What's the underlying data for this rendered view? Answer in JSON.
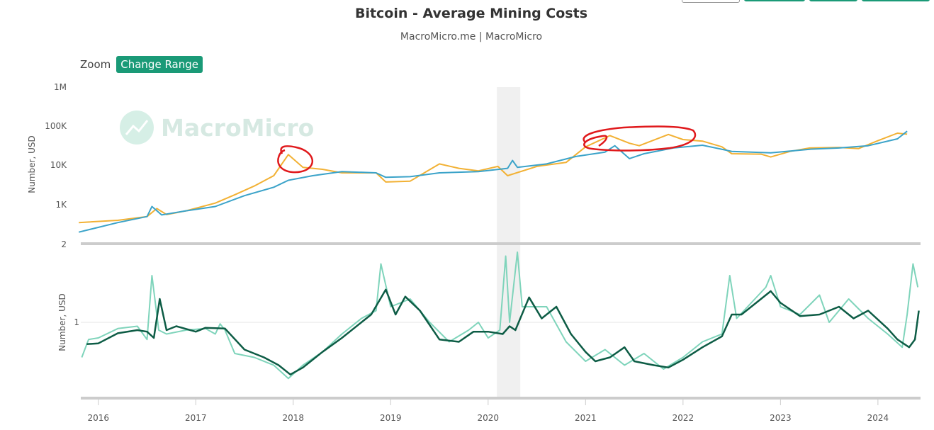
{
  "header": {
    "title": "Bitcoin - Average Mining Costs",
    "subtitle": "MacroMicro.me | MacroMicro"
  },
  "zoom": {
    "label": "Zoom",
    "button_label": "Change Range"
  },
  "watermark": {
    "text": "MacroMicro"
  },
  "colors": {
    "price": "#f2b134",
    "mining_cost": "#3ba3c9",
    "ratio": "#7fd4bb",
    "ratio_ma": "#0d5c45",
    "shade": "#f0f0f0",
    "annotation": "#e0191c"
  },
  "chart_data": [
    {
      "type": "line",
      "panel": "top",
      "y_scale": "log",
      "ylabel": "Number, USD",
      "y_ticks": [
        "1M",
        "100K",
        "10K",
        "1K",
        "2"
      ],
      "ylim": [
        100,
        1000000
      ],
      "series": [
        {
          "points": [
            [
              2015.8,
              350
            ],
            [
              2016.2,
              400
            ],
            [
              2016.5,
              500
            ],
            [
              2016.6,
              800
            ],
            [
              2016.7,
              560
            ],
            [
              2016.9,
              700
            ],
            [
              2017.2,
              1100
            ],
            [
              2017.4,
              1800
            ],
            [
              2017.6,
              3000
            ],
            [
              2017.8,
              5500
            ],
            [
              2017.95,
              19000
            ],
            [
              2018.1,
              9000
            ],
            [
              2018.3,
              8000
            ],
            [
              2018.5,
              6500
            ],
            [
              2018.85,
              6500
            ],
            [
              2018.95,
              3800
            ],
            [
              2019.2,
              4000
            ],
            [
              2019.5,
              11000
            ],
            [
              2019.7,
              8500
            ],
            [
              2019.9,
              7300
            ],
            [
              2020.1,
              9500
            ],
            [
              2020.2,
              5500
            ],
            [
              2020.5,
              9500
            ],
            [
              2020.8,
              12000
            ],
            [
              2021.0,
              30000
            ],
            [
              2021.25,
              58000
            ],
            [
              2021.45,
              37000
            ],
            [
              2021.55,
              32000
            ],
            [
              2021.85,
              62000
            ],
            [
              2022.0,
              46000
            ],
            [
              2022.2,
              42000
            ],
            [
              2022.4,
              30000
            ],
            [
              2022.5,
              20000
            ],
            [
              2022.8,
              19500
            ],
            [
              2022.9,
              16500
            ],
            [
              2023.1,
              23000
            ],
            [
              2023.3,
              28000
            ],
            [
              2023.6,
              29000
            ],
            [
              2023.8,
              27000
            ],
            [
              2024.0,
              43000
            ],
            [
              2024.2,
              67000
            ],
            [
              2024.3,
              63000
            ]
          ]
        },
        {
          "points": [
            [
              2015.8,
              200
            ],
            [
              2016.2,
              350
            ],
            [
              2016.5,
              500
            ],
            [
              2016.55,
              900
            ],
            [
              2016.65,
              550
            ],
            [
              2016.9,
              700
            ],
            [
              2017.2,
              900
            ],
            [
              2017.5,
              1700
            ],
            [
              2017.8,
              2800
            ],
            [
              2017.95,
              4200
            ],
            [
              2018.2,
              5500
            ],
            [
              2018.5,
              7000
            ],
            [
              2018.85,
              6500
            ],
            [
              2018.95,
              5000
            ],
            [
              2019.2,
              5200
            ],
            [
              2019.5,
              6500
            ],
            [
              2019.9,
              7000
            ],
            [
              2020.2,
              8500
            ],
            [
              2020.25,
              13500
            ],
            [
              2020.3,
              9000
            ],
            [
              2020.6,
              11000
            ],
            [
              2020.9,
              17000
            ],
            [
              2021.2,
              22000
            ],
            [
              2021.3,
              32000
            ],
            [
              2021.45,
              15000
            ],
            [
              2021.6,
              20000
            ],
            [
              2021.9,
              28000
            ],
            [
              2022.2,
              33000
            ],
            [
              2022.5,
              23000
            ],
            [
              2022.9,
              21000
            ],
            [
              2023.3,
              26000
            ],
            [
              2023.6,
              28000
            ],
            [
              2023.9,
              32000
            ],
            [
              2024.2,
              48000
            ],
            [
              2024.3,
              75000
            ]
          ]
        }
      ]
    },
    {
      "type": "line",
      "panel": "bottom",
      "ylabel": "Number, USD",
      "y_ticks": [
        "1"
      ],
      "ylim": [
        0.2,
        2.2
      ],
      "shaded_range": [
        2020.09,
        2020.33
      ],
      "x_ticks": [
        "2016",
        "2017",
        "2018",
        "2019",
        "2020",
        "2021",
        "2022",
        "2023",
        "2024"
      ],
      "xlim": [
        2015.82,
        2024.43
      ],
      "series": [
        {
          "points": [
            [
              2015.83,
              0.55
            ],
            [
              2015.9,
              0.78
            ],
            [
              2016.0,
              0.8
            ],
            [
              2016.2,
              0.92
            ],
            [
              2016.4,
              0.95
            ],
            [
              2016.5,
              0.78
            ],
            [
              2016.55,
              1.6
            ],
            [
              2016.62,
              0.9
            ],
            [
              2016.7,
              0.85
            ],
            [
              2016.9,
              0.9
            ],
            [
              2017.1,
              0.92
            ],
            [
              2017.2,
              0.85
            ],
            [
              2017.25,
              0.98
            ],
            [
              2017.3,
              0.9
            ],
            [
              2017.4,
              0.6
            ],
            [
              2017.6,
              0.55
            ],
            [
              2017.8,
              0.45
            ],
            [
              2017.95,
              0.28
            ],
            [
              2018.1,
              0.45
            ],
            [
              2018.3,
              0.62
            ],
            [
              2018.5,
              0.85
            ],
            [
              2018.7,
              1.05
            ],
            [
              2018.85,
              1.15
            ],
            [
              2018.9,
              1.75
            ],
            [
              2019.0,
              1.2
            ],
            [
              2019.2,
              1.3
            ],
            [
              2019.4,
              1.0
            ],
            [
              2019.6,
              0.75
            ],
            [
              2019.8,
              0.9
            ],
            [
              2019.9,
              1.0
            ],
            [
              2020.0,
              0.8
            ],
            [
              2020.12,
              0.9
            ],
            [
              2020.18,
              1.85
            ],
            [
              2020.22,
              1.0
            ],
            [
              2020.3,
              1.9
            ],
            [
              2020.35,
              1.2
            ],
            [
              2020.6,
              1.2
            ],
            [
              2020.8,
              0.75
            ],
            [
              2021.0,
              0.5
            ],
            [
              2021.2,
              0.65
            ],
            [
              2021.4,
              0.45
            ],
            [
              2021.6,
              0.6
            ],
            [
              2021.8,
              0.4
            ],
            [
              2022.0,
              0.55
            ],
            [
              2022.2,
              0.75
            ],
            [
              2022.4,
              0.85
            ],
            [
              2022.48,
              1.6
            ],
            [
              2022.55,
              1.05
            ],
            [
              2022.7,
              1.25
            ],
            [
              2022.85,
              1.45
            ],
            [
              2022.9,
              1.6
            ],
            [
              2023.0,
              1.2
            ],
            [
              2023.2,
              1.1
            ],
            [
              2023.4,
              1.35
            ],
            [
              2023.5,
              1.0
            ],
            [
              2023.7,
              1.3
            ],
            [
              2023.9,
              1.05
            ],
            [
              2024.1,
              0.85
            ],
            [
              2024.25,
              0.68
            ],
            [
              2024.3,
              1.1
            ],
            [
              2024.36,
              1.75
            ],
            [
              2024.41,
              1.45
            ]
          ]
        },
        {
          "points": [
            [
              2015.88,
              0.72
            ],
            [
              2016.0,
              0.73
            ],
            [
              2016.2,
              0.86
            ],
            [
              2016.4,
              0.9
            ],
            [
              2016.5,
              0.88
            ],
            [
              2016.57,
              0.8
            ],
            [
              2016.63,
              1.3
            ],
            [
              2016.7,
              0.9
            ],
            [
              2016.8,
              0.95
            ],
            [
              2017.0,
              0.88
            ],
            [
              2017.1,
              0.93
            ],
            [
              2017.3,
              0.92
            ],
            [
              2017.5,
              0.65
            ],
            [
              2017.7,
              0.55
            ],
            [
              2017.85,
              0.45
            ],
            [
              2017.97,
              0.33
            ],
            [
              2018.1,
              0.42
            ],
            [
              2018.3,
              0.62
            ],
            [
              2018.5,
              0.8
            ],
            [
              2018.7,
              1.0
            ],
            [
              2018.8,
              1.1
            ],
            [
              2018.95,
              1.42
            ],
            [
              2019.05,
              1.1
            ],
            [
              2019.15,
              1.33
            ],
            [
              2019.3,
              1.15
            ],
            [
              2019.5,
              0.78
            ],
            [
              2019.7,
              0.75
            ],
            [
              2019.85,
              0.88
            ],
            [
              2020.0,
              0.88
            ],
            [
              2020.15,
              0.85
            ],
            [
              2020.22,
              0.95
            ],
            [
              2020.28,
              0.9
            ],
            [
              2020.42,
              1.32
            ],
            [
              2020.55,
              1.05
            ],
            [
              2020.7,
              1.2
            ],
            [
              2020.85,
              0.85
            ],
            [
              2021.0,
              0.62
            ],
            [
              2021.1,
              0.5
            ],
            [
              2021.25,
              0.55
            ],
            [
              2021.4,
              0.68
            ],
            [
              2021.5,
              0.5
            ],
            [
              2021.7,
              0.45
            ],
            [
              2021.85,
              0.42
            ],
            [
              2022.0,
              0.52
            ],
            [
              2022.2,
              0.68
            ],
            [
              2022.4,
              0.82
            ],
            [
              2022.5,
              1.1
            ],
            [
              2022.6,
              1.1
            ],
            [
              2022.75,
              1.25
            ],
            [
              2022.9,
              1.4
            ],
            [
              2023.0,
              1.25
            ],
            [
              2023.2,
              1.08
            ],
            [
              2023.4,
              1.1
            ],
            [
              2023.6,
              1.2
            ],
            [
              2023.75,
              1.05
            ],
            [
              2023.9,
              1.15
            ],
            [
              2024.1,
              0.92
            ],
            [
              2024.2,
              0.78
            ],
            [
              2024.32,
              0.68
            ],
            [
              2024.38,
              0.78
            ],
            [
              2024.42,
              1.15
            ]
          ]
        }
      ]
    }
  ]
}
